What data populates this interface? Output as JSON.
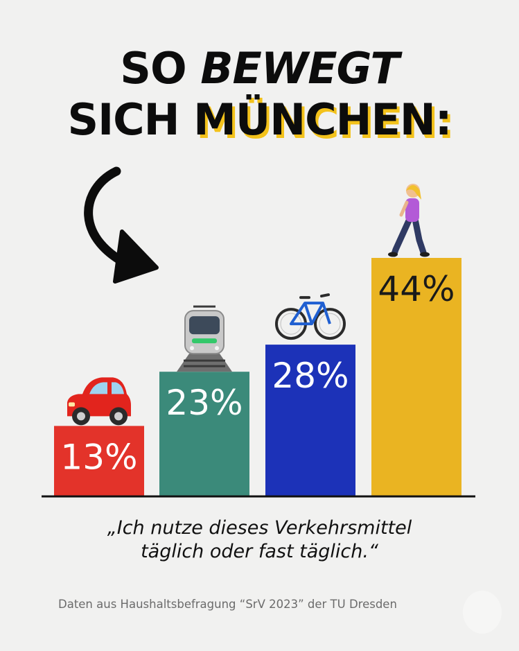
{
  "header": {
    "line1_a": "SO",
    "line1_b": "BEWEGT",
    "line2_a": "SICH",
    "line2_b": "MÜNCHEN:"
  },
  "chart_data": {
    "type": "bar",
    "categories": [
      "car-icon",
      "tram-icon",
      "bicycle-icon",
      "pedestrian-icon"
    ],
    "values": [
      13,
      23,
      28,
      44
    ],
    "value_labels": [
      "13%",
      "23%",
      "28%",
      "44%"
    ],
    "colors": [
      "#e3332a",
      "#3b8a7a",
      "#1c32b8",
      "#eab422"
    ],
    "ylim": [
      0,
      44
    ],
    "grid": false,
    "legend": "none"
  },
  "quote": {
    "line1": "„Ich nutze dieses Verkehrsmittel",
    "line2": "täglich oder fast täglich.“"
  },
  "source": "Daten aus Haushaltsbefragung “SrV 2023” der TU Dresden"
}
